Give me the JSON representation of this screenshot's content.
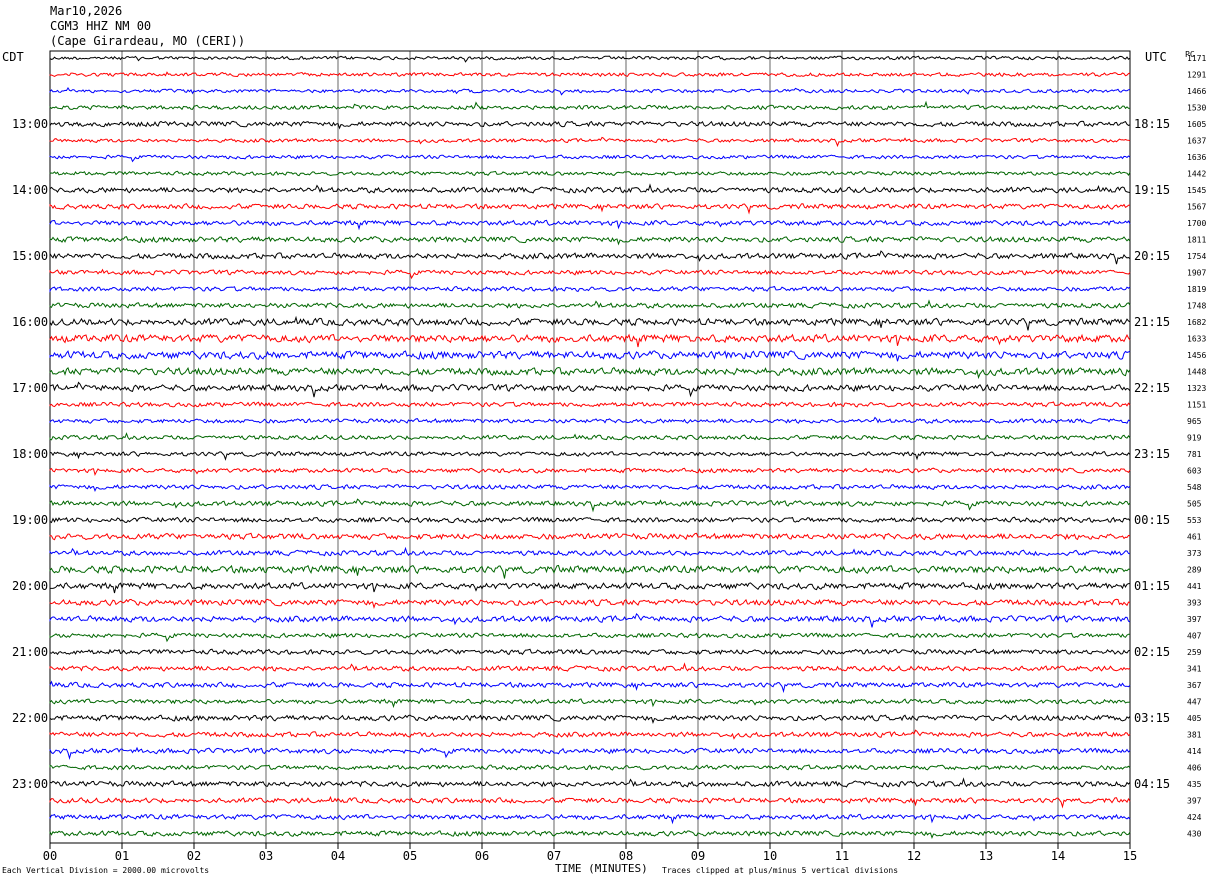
{
  "header": {
    "date": "Mar10,2026",
    "station": "CGM3 HHZ NM 00",
    "location": "(Cape Girardeau, MO (CERI))"
  },
  "left_zone_label": "CDT",
  "right_zone_label": "UTC",
  "pc_label": "PC",
  "footer": {
    "scale_note": "Each Vertical Division = 2000.00 microvolts",
    "clip_note": "Traces clipped at plus/minus 5 vertical divisions",
    "xlabel": "TIME (MINUTES)"
  },
  "colors": {
    "trace_cycle": [
      "#000000",
      "#ff0000",
      "#0000ff",
      "#006600"
    ],
    "grid": "#000000"
  },
  "chart_data": {
    "type": "line",
    "title": "CGM3 HHZ NM 00",
    "xlabel": "TIME (MINUTES)",
    "x_ticks": [
      "00",
      "01",
      "02",
      "03",
      "04",
      "05",
      "06",
      "07",
      "08",
      "09",
      "10",
      "11",
      "12",
      "13",
      "14",
      "15"
    ],
    "xlim": [
      0,
      15
    ],
    "trace_count": 48,
    "left_hour_labels": [
      "13:00",
      "14:00",
      "15:00",
      "16:00",
      "17:00",
      "18:00",
      "19:00",
      "20:00",
      "21:00",
      "22:00",
      "23:00"
    ],
    "right_hour_labels": [
      "18:15",
      "19:15",
      "20:15",
      "21:15",
      "22:15",
      "23:15",
      "00:15",
      "01:15",
      "02:15",
      "03:15",
      "04:15"
    ],
    "hour_label_first_trace": 4,
    "hour_label_every": 4,
    "pc_values": [
      "1171",
      "1291",
      "1466",
      "1530",
      "1605",
      "1637",
      "1636",
      "1442",
      "1545",
      "1567",
      "1700",
      "1811",
      "1754",
      "1907",
      "1819",
      "1748",
      "1682",
      "1633",
      "1456",
      "1448",
      "1323",
      "1151",
      "965",
      "919",
      "781",
      "603",
      "548",
      "505",
      "553",
      "461",
      "373",
      "289",
      "441",
      "393",
      "397",
      "407",
      "259",
      "341",
      "367",
      "447",
      "405",
      "381",
      "414",
      "406",
      "435",
      "397",
      "424",
      "430"
    ]
  }
}
